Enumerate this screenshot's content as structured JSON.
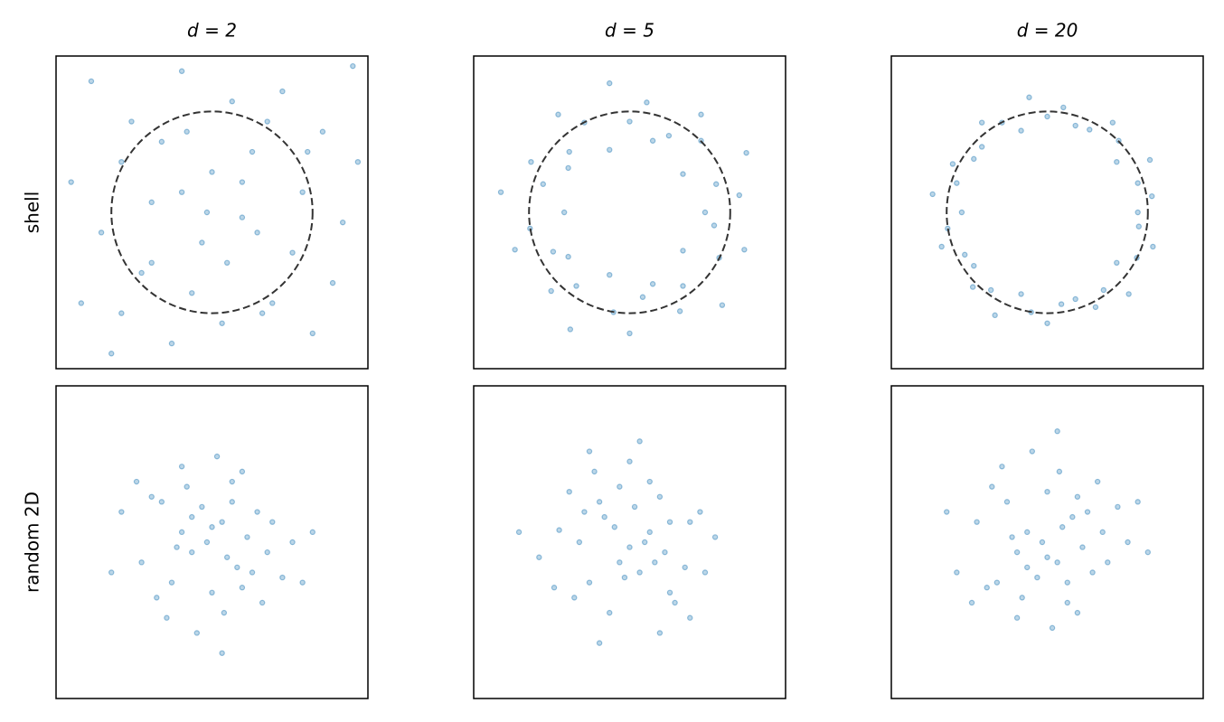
{
  "chart_data": [
    {
      "type": "scatter",
      "title": "d = 2",
      "ylabel": "shell",
      "color": "#1f77b4",
      "circle_radius": 1,
      "xlim": [
        -1.55,
        1.55
      ],
      "ylim": [
        -1.55,
        1.55
      ],
      "x": [
        -1.2,
        -0.8,
        -0.3,
        0.2,
        0.7,
        1.1,
        1.4,
        -1.4,
        -0.9,
        -0.5,
        0.0,
        0.4,
        0.9,
        1.3,
        -1.1,
        -0.6,
        -0.1,
        0.3,
        0.8,
        1.2,
        -1.3,
        -0.7,
        -0.2,
        0.5,
        1.0,
        -1.0,
        -0.4,
        0.1,
        0.6,
        1.45,
        -0.3,
        0.3,
        -0.05,
        0.15,
        -0.6,
        0.45,
        -0.25,
        0.55,
        -0.9,
        0.95
      ],
      "y": [
        1.3,
        0.9,
        1.4,
        1.1,
        1.2,
        0.8,
        1.45,
        0.3,
        0.5,
        0.7,
        0.4,
        0.6,
        0.2,
        -0.1,
        -0.2,
        0.1,
        -0.3,
        -0.05,
        -0.4,
        -0.7,
        -0.9,
        -0.6,
        -0.8,
        -1.0,
        -1.2,
        -1.4,
        -1.3,
        -1.1,
        -0.9,
        0.5,
        0.2,
        0.3,
        0.0,
        -0.5,
        -0.5,
        -0.2,
        0.8,
        0.9,
        -1.0,
        0.6
      ]
    },
    {
      "type": "scatter",
      "title": "d = 5",
      "color": "#1f77b4",
      "circle_radius": 1,
      "xlim": [
        -1.55,
        1.55
      ],
      "ylim": [
        -1.55,
        1.55
      ],
      "x": [
        0.75,
        1.09,
        0.86,
        1.16,
        0.53,
        0.71,
        0.71,
        0.39,
        0.23,
        0.17,
        0,
        -0.2,
        -0.2,
        -0.45,
        -0.71,
        -0.6,
        -0.61,
        -0.98,
        -0.86,
        -1.28,
        -0.65,
        -0.99,
        -1.14,
        -0.76,
        -0.61,
        -0.78,
        -0.53,
        -0.59,
        -0.2,
        -0.16,
        0,
        0.13,
        0.23,
        0.5,
        0.53,
        0.92,
        0.53,
        0.89,
        1.14,
        0.84
      ],
      "y": [
        0,
        0.17,
        0.28,
        0.59,
        0.38,
        0.71,
        0.97,
        0.76,
        0.71,
        1.09,
        0.9,
        1.28,
        0.62,
        0.89,
        0.97,
        0.6,
        0.44,
        0.5,
        0.28,
        0.2,
        0,
        -0.16,
        -0.37,
        -0.39,
        -0.44,
        -0.78,
        -0.73,
        -1.16,
        -0.62,
        -0.99,
        -1.2,
        -0.84,
        -0.71,
        -0.98,
        -0.73,
        -0.92,
        -0.38,
        -0.45,
        -0.37,
        -0.13
      ]
    },
    {
      "type": "scatter",
      "title": "d = 20",
      "color": "#1f77b4",
      "circle_radius": 1,
      "xlim": [
        -1.55,
        1.55
      ],
      "ylim": [
        -1.55,
        1.55
      ],
      "x": [
        0.9,
        1.04,
        0.9,
        1.02,
        0.69,
        0.71,
        0.65,
        0.42,
        0.28,
        0.16,
        0,
        -0.18,
        -0.26,
        -0.45,
        -0.65,
        -0.65,
        -0.73,
        -0.94,
        -0.9,
        -1.14,
        -0.85,
        -0.99,
        -1.05,
        -0.82,
        -0.73,
        -0.74,
        -0.56,
        -0.52,
        -0.26,
        -0.16,
        0,
        0.14,
        0.28,
        0.48,
        0.56,
        0.81,
        0.69,
        0.89,
        1.05,
        0.91
      ],
      "y": [
        0,
        0.16,
        0.29,
        0.52,
        0.5,
        0.71,
        0.89,
        0.82,
        0.86,
        1.04,
        0.95,
        1.14,
        0.81,
        0.89,
        0.89,
        0.65,
        0.53,
        0.48,
        0.29,
        0.18,
        0,
        -0.16,
        -0.34,
        -0.42,
        -0.53,
        -0.74,
        -0.77,
        -1.02,
        -0.81,
        -0.99,
        -1.1,
        -0.91,
        -0.86,
        -0.94,
        -0.77,
        -0.81,
        -0.5,
        -0.45,
        -0.34,
        -0.14
      ]
    },
    {
      "type": "scatter",
      "ylabel": "random 2D",
      "color": "#1f77b4",
      "xlim": [
        -1.55,
        1.55
      ],
      "ylim": [
        -1.55,
        1.55
      ],
      "x": [
        0.1,
        -0.3,
        0.4,
        -0.5,
        0.2,
        0.0,
        -0.2,
        0.6,
        -0.7,
        0.3,
        -0.1,
        0.5,
        -0.4,
        0.15,
        -0.25,
        0.8,
        -0.9,
        0.05,
        0.35,
        -0.45,
        0.25,
        -0.15,
        0.7,
        -0.6,
        0.0,
        0.45,
        -0.35,
        1.0,
        -1.0,
        0.1,
        -0.05,
        0.3,
        -0.3,
        0.55,
        -0.55,
        0.2,
        -0.2,
        0.9,
        -0.75,
        0.12
      ],
      "y": [
        0.2,
        0.1,
        -0.3,
        0.4,
        0.6,
        -0.5,
        -0.1,
        0.2,
        -0.2,
        0.7,
        0.35,
        -0.6,
        -0.4,
        -0.15,
        0.55,
        0.0,
        0.3,
        0.85,
        0.05,
        -0.75,
        -0.25,
        -0.9,
        -0.35,
        0.45,
        0.15,
        0.3,
        -0.05,
        0.1,
        -0.3,
        -1.1,
        0.0,
        -0.45,
        0.75,
        -0.1,
        -0.55,
        0.4,
        0.25,
        -0.4,
        0.6,
        -0.7
      ]
    },
    {
      "type": "scatter",
      "color": "#1f77b4",
      "xlim": [
        -1.55,
        1.55
      ],
      "ylim": [
        -1.55,
        1.55
      ],
      "x": [
        0.2,
        0.1,
        -0.3,
        0.4,
        0.6,
        -0.5,
        -0.1,
        0.2,
        -0.2,
        0.7,
        0.35,
        -0.6,
        -0.4,
        -0.15,
        0.55,
        0.0,
        0.3,
        0.85,
        0.05,
        -0.75,
        -0.25,
        -0.9,
        -0.35,
        0.45,
        0.15,
        0.3,
        -0.05,
        0.1,
        -0.3,
        -1.1,
        0.0,
        -0.45,
        0.75,
        -0.1,
        -0.55,
        0.4,
        0.25,
        -0.4,
        0.6,
        -0.7
      ],
      "y": [
        0.1,
        -0.3,
        0.4,
        -0.5,
        0.2,
        0.0,
        -0.2,
        0.6,
        -0.7,
        0.3,
        -0.1,
        0.5,
        -0.4,
        0.15,
        -0.25,
        0.8,
        -0.9,
        0.05,
        0.35,
        -0.45,
        0.25,
        -0.15,
        0.7,
        -0.6,
        0.0,
        0.45,
        -0.35,
        1.0,
        -1.0,
        0.1,
        -0.05,
        0.3,
        -0.3,
        0.55,
        -0.55,
        0.2,
        -0.2,
        0.9,
        -0.75,
        0.12
      ]
    },
    {
      "type": "scatter",
      "color": "#1f77b4",
      "xlim": [
        -1.55,
        1.55
      ],
      "ylim": [
        -1.55,
        1.55
      ],
      "x": [
        0.1,
        -0.3,
        0.4,
        -0.5,
        0.2,
        0.0,
        -0.2,
        0.6,
        -0.7,
        0.3,
        -0.1,
        0.5,
        -0.4,
        0.15,
        -0.25,
        0.8,
        -0.9,
        0.05,
        0.35,
        -0.45,
        0.25,
        -0.15,
        0.7,
        -0.6,
        0.0,
        0.45,
        -0.35,
        1.0,
        -1.0,
        0.1,
        -0.05,
        0.3,
        -0.3,
        0.55,
        -0.55,
        0.2,
        -0.2,
        0.9,
        -0.75,
        0.12
      ],
      "y": [
        -0.2,
        -0.1,
        0.3,
        -0.4,
        -0.6,
        0.5,
        0.1,
        -0.2,
        0.2,
        -0.7,
        -0.35,
        0.6,
        0.4,
        0.15,
        -0.55,
        0.0,
        -0.3,
        -0.85,
        -0.05,
        0.75,
        0.25,
        0.9,
        0.35,
        -0.45,
        -0.15,
        -0.3,
        0.05,
        -0.1,
        0.3,
        1.1,
        0.0,
        0.45,
        -0.75,
        0.1,
        0.55,
        -0.4,
        -0.25,
        0.4,
        -0.6,
        0.7
      ]
    }
  ]
}
